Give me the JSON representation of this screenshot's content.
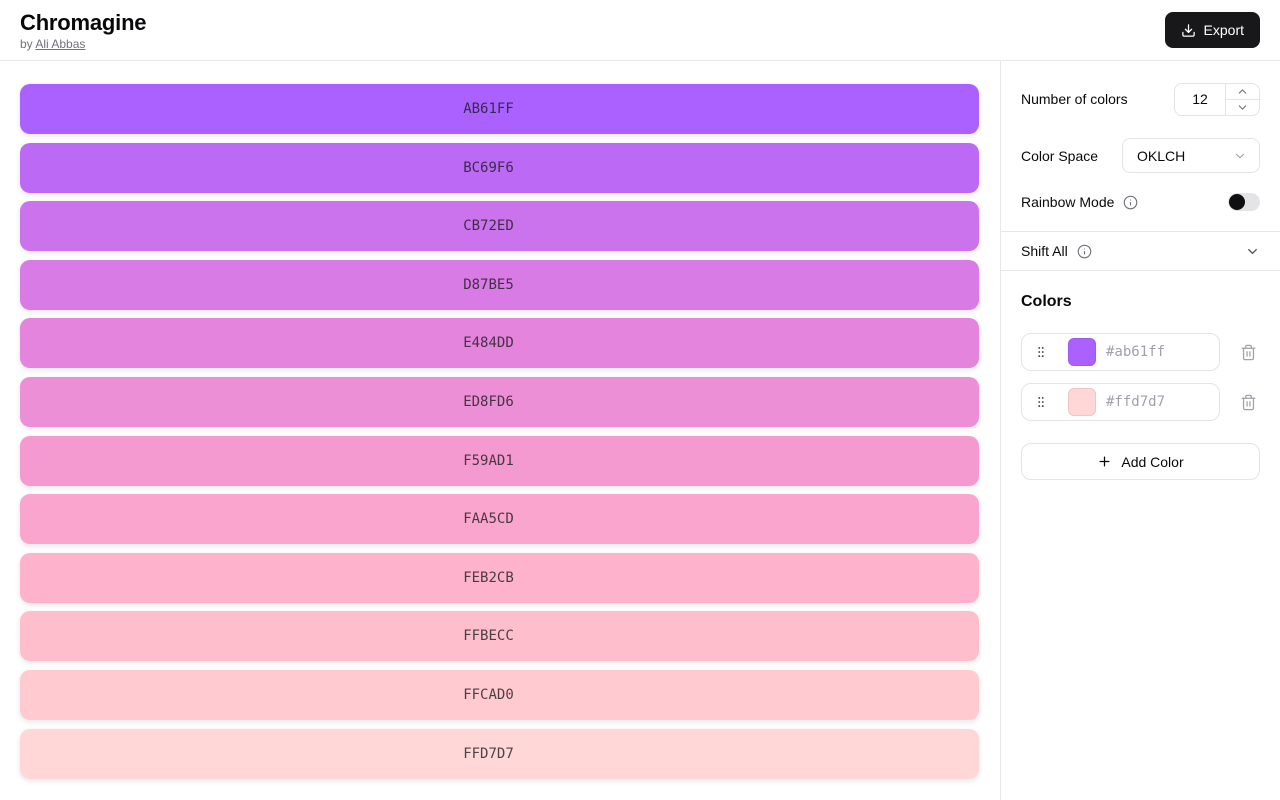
{
  "header": {
    "title": "Chromagine",
    "byline_prefix": "by",
    "author_link": "Ali Abbas",
    "export_button": "Export"
  },
  "palette": [
    "AB61FF",
    "BC69F6",
    "CB72ED",
    "D87BE5",
    "E484DD",
    "ED8FD6",
    "F59AD1",
    "FAA5CD",
    "FEB2CB",
    "FFBECC",
    "FFCAD0",
    "FFD7D7"
  ],
  "controls": {
    "number_of_colors_label": "Number of colors",
    "number_of_colors_value": "12",
    "color_space_label": "Color Space",
    "color_space_value": "OKLCH",
    "rainbow_mode_label": "Rainbow Mode",
    "rainbow_mode_on": false,
    "shift_all_label": "Shift All"
  },
  "colors_panel": {
    "heading": "Colors",
    "items": [
      {
        "hex": "#ab61ff"
      },
      {
        "hex": "#ffd7d7"
      }
    ],
    "add_color_label": "Add Color"
  },
  "theme": {
    "accent_dark": "#18181b",
    "border": "#e4e4e7",
    "muted_text": "#71717a",
    "placeholder_text": "#a1a1aa"
  }
}
